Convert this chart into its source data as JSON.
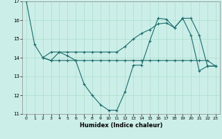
{
  "xlabel": "Humidex (Indice chaleur)",
  "xlim": [
    -0.5,
    23.5
  ],
  "ylim": [
    11,
    17
  ],
  "yticks": [
    11,
    12,
    13,
    14,
    15,
    16,
    17
  ],
  "xticks": [
    0,
    1,
    2,
    3,
    4,
    5,
    6,
    7,
    8,
    9,
    10,
    11,
    12,
    13,
    14,
    15,
    16,
    17,
    18,
    19,
    20,
    21,
    22,
    23
  ],
  "bg_color": "#cceee8",
  "line_color": "#1a6b6b",
  "grid_color": "#aaddcc",
  "lines": [
    {
      "x": [
        0,
        1,
        2,
        3,
        4,
        5,
        6,
        7,
        8,
        9,
        10,
        11,
        12,
        13,
        14,
        15,
        16,
        17,
        18,
        19,
        20,
        21,
        22,
        23
      ],
      "y": [
        17,
        14.7,
        14.0,
        13.85,
        14.3,
        14.1,
        13.85,
        12.6,
        12.0,
        11.5,
        11.2,
        11.2,
        12.2,
        13.6,
        13.6,
        14.9,
        16.1,
        16.05,
        15.6,
        16.1,
        15.2,
        13.3,
        13.55,
        13.55
      ]
    },
    {
      "x": [
        2,
        3,
        4,
        5,
        6,
        7,
        8,
        9,
        10,
        11,
        12,
        13,
        14,
        15,
        16,
        17,
        18,
        19,
        20,
        21,
        22,
        23
      ],
      "y": [
        14.0,
        13.85,
        13.85,
        13.85,
        13.85,
        13.85,
        13.85,
        13.85,
        13.85,
        13.85,
        13.85,
        13.85,
        13.85,
        13.85,
        13.85,
        13.85,
        13.85,
        13.85,
        13.85,
        13.85,
        13.85,
        13.55
      ]
    },
    {
      "x": [
        2,
        3,
        4,
        5,
        6,
        7,
        8,
        9,
        10,
        11,
        12,
        13,
        14,
        15,
        16,
        17,
        18,
        19,
        20,
        21,
        22,
        23
      ],
      "y": [
        14.0,
        14.3,
        14.3,
        14.3,
        14.3,
        14.3,
        14.3,
        14.3,
        14.3,
        14.3,
        14.6,
        15.0,
        15.3,
        15.5,
        15.8,
        15.85,
        15.6,
        16.1,
        16.1,
        15.2,
        13.55,
        13.55
      ]
    }
  ]
}
